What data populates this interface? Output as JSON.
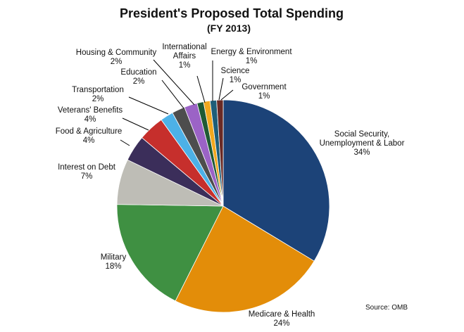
{
  "chart_data": {
    "type": "pie",
    "title": "President's Proposed Total Spending",
    "subtitle": "(FY 2013)",
    "source": "Source: OMB",
    "slices": [
      {
        "key": "social-security",
        "lines": [
          "Social Security,",
          "Unemployment & Labor"
        ],
        "pct_label": "34%",
        "value": 34,
        "color": "#1c4378"
      },
      {
        "key": "medicare",
        "lines": [
          "Medicare & Health"
        ],
        "pct_label": "24%",
        "value": 24,
        "color": "#e38d09"
      },
      {
        "key": "military",
        "lines": [
          "Military"
        ],
        "pct_label": "18%",
        "value": 18,
        "color": "#3f9042"
      },
      {
        "key": "interest-on-debt",
        "lines": [
          "Interest on Debt"
        ],
        "pct_label": "7%",
        "value": 7,
        "color": "#bebdb6"
      },
      {
        "key": "food-agriculture",
        "lines": [
          "Food & Agriculture"
        ],
        "pct_label": "4%",
        "value": 4,
        "color": "#3b2e5a"
      },
      {
        "key": "veterans-benefits",
        "lines": [
          "Veterans' Benefits"
        ],
        "pct_label": "4%",
        "value": 4,
        "color": "#c62f2c"
      },
      {
        "key": "transportation",
        "lines": [
          "Transportation"
        ],
        "pct_label": "2%",
        "value": 2,
        "color": "#4db1e7"
      },
      {
        "key": "education",
        "lines": [
          "Education"
        ],
        "pct_label": "2%",
        "value": 2,
        "color": "#4d4d4d"
      },
      {
        "key": "housing-community",
        "lines": [
          "Housing & Community"
        ],
        "pct_label": "2%",
        "value": 2,
        "color": "#9b63c6"
      },
      {
        "key": "international-affairs",
        "lines": [
          "International",
          "Affairs"
        ],
        "pct_label": "1%",
        "value": 1,
        "color": "#1f5a34"
      },
      {
        "key": "energy-environment",
        "lines": [
          "Energy & Environment"
        ],
        "pct_label": "1%",
        "value": 1,
        "color": "#f2a81e"
      },
      {
        "key": "science",
        "lines": [
          "Science"
        ],
        "pct_label": "1%",
        "value": 1,
        "color": "#1e5e78"
      },
      {
        "key": "government",
        "lines": [
          "Government"
        ],
        "pct_label": "1%",
        "value": 1,
        "color": "#6a2a25"
      }
    ]
  }
}
